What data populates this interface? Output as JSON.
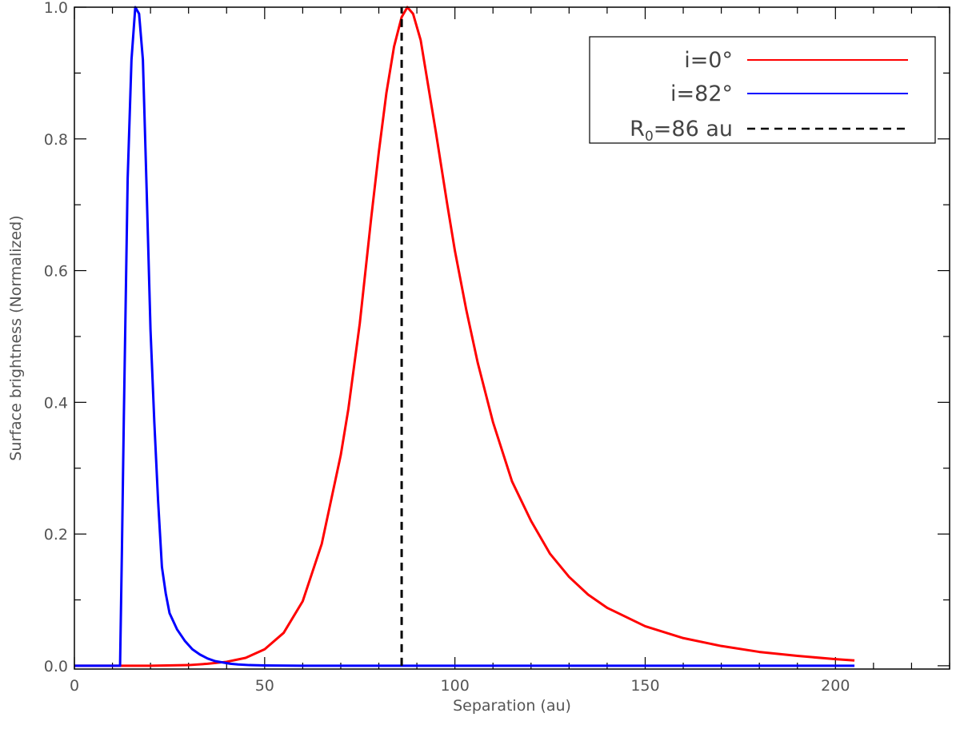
{
  "chart_data": {
    "type": "line",
    "xlabel": "Separation (au)",
    "ylabel": "Surface brightness (Normalized)",
    "xlim": [
      0,
      230
    ],
    "ylim": [
      -0.005,
      1.0
    ],
    "x_ticks": [
      0,
      50,
      100,
      150,
      200
    ],
    "y_ticks": [
      0.0,
      0.2,
      0.4,
      0.6,
      0.8,
      1.0
    ],
    "x_tick_labels": [
      "0",
      "50",
      "100",
      "150",
      "200"
    ],
    "y_tick_labels": [
      "0.0",
      "0.2",
      "0.4",
      "0.6",
      "0.8",
      "1.0"
    ],
    "x_minor_step": 10,
    "y_minor_step": 0.1,
    "grid": false,
    "legend_position": "top-right",
    "series": [
      {
        "label": "i=0°",
        "color": "#ff0000",
        "style": "solid",
        "x": [
          0,
          20,
          30,
          35,
          40,
          45,
          50,
          55,
          60,
          65,
          70,
          72,
          75,
          78,
          80,
          82,
          84,
          86,
          87.5,
          89,
          91,
          93,
          95,
          98,
          100,
          103,
          106,
          110,
          115,
          120,
          125,
          130,
          135,
          140,
          150,
          160,
          170,
          180,
          190,
          200,
          205
        ],
        "y": [
          0.0,
          0.0,
          0.001,
          0.003,
          0.006,
          0.012,
          0.025,
          0.05,
          0.098,
          0.185,
          0.32,
          0.39,
          0.52,
          0.68,
          0.78,
          0.87,
          0.94,
          0.985,
          1.0,
          0.99,
          0.95,
          0.88,
          0.81,
          0.7,
          0.63,
          0.54,
          0.46,
          0.37,
          0.28,
          0.22,
          0.17,
          0.135,
          0.108,
          0.088,
          0.06,
          0.042,
          0.03,
          0.021,
          0.015,
          0.01,
          0.008
        ]
      },
      {
        "label": "i=82°",
        "color": "#0000ff",
        "style": "solid",
        "x": [
          0,
          12,
          12.5,
          13,
          14,
          15,
          16,
          17,
          18,
          19,
          20,
          21,
          22,
          23,
          24,
          25,
          27,
          29,
          31,
          33,
          35,
          37,
          39,
          41,
          43,
          46,
          50,
          60,
          80,
          100,
          150,
          205
        ],
        "y": [
          0.0,
          0.0,
          0.18,
          0.38,
          0.74,
          0.92,
          1.0,
          0.99,
          0.92,
          0.72,
          0.51,
          0.37,
          0.25,
          0.15,
          0.11,
          0.08,
          0.055,
          0.038,
          0.025,
          0.017,
          0.011,
          0.007,
          0.005,
          0.003,
          0.002,
          0.001,
          0.0005,
          0.0,
          0.0,
          0.0,
          0.0,
          0.0
        ]
      },
      {
        "label": "R0=86 au",
        "label_main": "R",
        "label_sub": "0",
        "label_rest": "=86 au",
        "color": "#000000",
        "style": "dashed",
        "x": [
          86,
          86
        ],
        "y": [
          0.0,
          1.0
        ]
      }
    ]
  }
}
